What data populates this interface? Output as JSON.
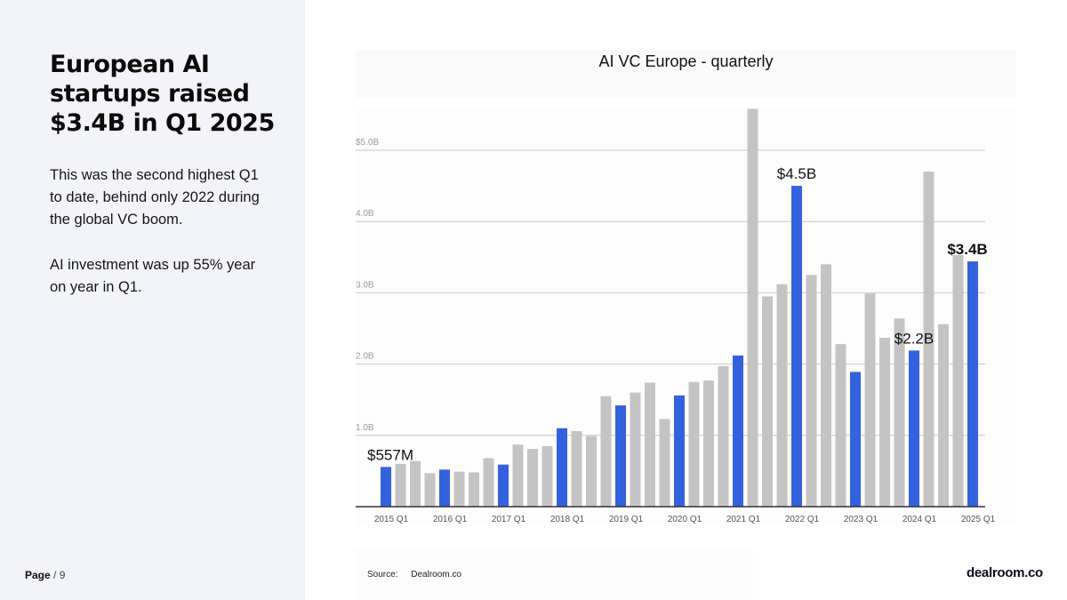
{
  "slide": {
    "headline": "European AI startups raised $3.4B in Q1 2025",
    "paragraph_1": "This was the second highest Q1 to date, behind only 2022 during the global VC boom.",
    "paragraph_2": "AI investment was up 55% year on year in Q1.",
    "page_label": "Page",
    "page_total": "/ 9",
    "source_label": "Source:",
    "source_value": "Dealroom.co",
    "logo": "dealroom.co"
  },
  "colors": {
    "q1_bar": "#3461dd",
    "other_bar": "#c4c4c4",
    "panel_bg": "#f3f4f9"
  },
  "chart_data": {
    "type": "bar",
    "title": "AI VC Europe - quarterly",
    "xlabel": "",
    "ylabel": "",
    "ylim": [
      0,
      5.6
    ],
    "yticks": [
      {
        "value": 1.0,
        "label": "1.0B"
      },
      {
        "value": 2.0,
        "label": "2.0B"
      },
      {
        "value": 3.0,
        "label": "3.0B"
      },
      {
        "value": 4.0,
        "label": "4.0B"
      },
      {
        "value": 5.0,
        "label": "$5.0B"
      }
    ],
    "grid": true,
    "legend": "none",
    "categories": [
      "2015 Q1",
      "2015 Q2",
      "2015 Q3",
      "2015 Q4",
      "2016 Q1",
      "2016 Q2",
      "2016 Q3",
      "2016 Q4",
      "2017 Q1",
      "2017 Q2",
      "2017 Q3",
      "2017 Q4",
      "2018 Q1",
      "2018 Q2",
      "2018 Q3",
      "2018 Q4",
      "2019 Q1",
      "2019 Q2",
      "2019 Q3",
      "2019 Q4",
      "2020 Q1",
      "2020 Q2",
      "2020 Q3",
      "2020 Q4",
      "2021 Q1",
      "2021 Q2",
      "2021 Q3",
      "2021 Q4",
      "2022 Q1",
      "2022 Q2",
      "2022 Q3",
      "2022 Q4",
      "2023 Q1",
      "2023 Q2",
      "2023 Q3",
      "2023 Q4",
      "2024 Q1",
      "2024 Q2",
      "2024 Q3",
      "2024 Q4",
      "2025 Q1"
    ],
    "x_tick_labels": [
      "2015 Q1",
      "2016 Q1",
      "2017 Q1",
      "2018 Q1",
      "2019 Q1",
      "2020 Q1",
      "2021 Q1",
      "2022 Q1",
      "2023 Q1",
      "2024 Q1",
      "2025 Q1"
    ],
    "values": [
      0.557,
      0.6,
      0.64,
      0.47,
      0.52,
      0.49,
      0.48,
      0.68,
      0.59,
      0.87,
      0.81,
      0.85,
      1.1,
      1.06,
      0.99,
      1.55,
      1.42,
      1.6,
      1.74,
      1.23,
      1.56,
      1.75,
      1.77,
      1.97,
      2.12,
      5.58,
      2.95,
      3.12,
      4.5,
      3.25,
      3.4,
      2.28,
      1.89,
      2.99,
      2.37,
      2.64,
      2.19,
      4.7,
      2.56,
      3.53,
      3.44
    ],
    "highlight": "Q1 bars in blue, other quarters in grey",
    "annotations": [
      {
        "category": "2015 Q1",
        "text": "$557M",
        "bold": false
      },
      {
        "category": "2022 Q1",
        "text": "$4.5B",
        "bold": false
      },
      {
        "category": "2024 Q1",
        "text": "$2.2B",
        "bold": false
      },
      {
        "category": "2025 Q1",
        "text": "$3.4B",
        "bold": true
      }
    ]
  }
}
